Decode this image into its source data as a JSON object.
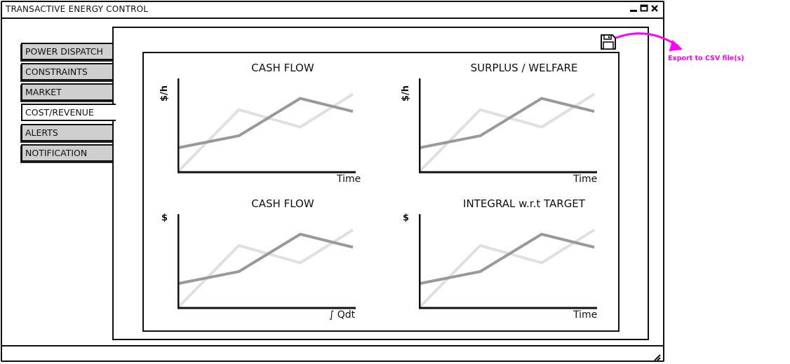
{
  "window": {
    "title": "TRANSACTIVE ENERGY CONTROL"
  },
  "tabs": [
    {
      "label": "POWER DISPATCH",
      "active": false
    },
    {
      "label": "CONSTRAINTS",
      "active": false
    },
    {
      "label": "MARKET",
      "active": false
    },
    {
      "label": "COST/REVENUE",
      "active": true
    },
    {
      "label": "ALERTS",
      "active": false
    },
    {
      "label": "NOTIFICATION",
      "active": false
    }
  ],
  "toolbar": {
    "save_icon": "floppy-disk-icon"
  },
  "annotation": {
    "export_label": "Export to CSV file(s)",
    "color": "#ff00ff"
  },
  "charts": [
    {
      "title": "CASH FLOW",
      "ylabel": "$/h",
      "xlabel": "Time"
    },
    {
      "title": "SURPLUS / WELFARE",
      "ylabel": "$/h",
      "xlabel": "Time"
    },
    {
      "title": "CASH FLOW",
      "ylabel": "$",
      "xlabel": "∫ Qdt"
    },
    {
      "title": "INTEGRAL w.r.t TARGET",
      "ylabel": "$",
      "xlabel": "Time"
    }
  ],
  "chart_data": [
    {
      "type": "line",
      "title": "CASH FLOW",
      "xlabel": "Time",
      "ylabel": "$/h",
      "series": [
        {
          "color": "#999999",
          "values": [
            {
              "x": 0,
              "y": 0.28
            },
            {
              "x": 0.35,
              "y": 0.42
            },
            {
              "x": 0.7,
              "y": 0.85
            },
            {
              "x": 1,
              "y": 0.7
            }
          ]
        },
        {
          "color": "#e0e0e0",
          "values": [
            {
              "x": 0,
              "y": 0.0
            },
            {
              "x": 0.35,
              "y": 0.72
            },
            {
              "x": 0.7,
              "y": 0.52
            },
            {
              "x": 1,
              "y": 0.9
            }
          ]
        }
      ]
    },
    {
      "type": "line",
      "title": "SURPLUS / WELFARE",
      "xlabel": "Time",
      "ylabel": "$/h",
      "series": [
        {
          "color": "#999999",
          "values": [
            {
              "x": 0,
              "y": 0.28
            },
            {
              "x": 0.35,
              "y": 0.42
            },
            {
              "x": 0.7,
              "y": 0.85
            },
            {
              "x": 1,
              "y": 0.7
            }
          ]
        },
        {
          "color": "#e0e0e0",
          "values": [
            {
              "x": 0,
              "y": 0.0
            },
            {
              "x": 0.35,
              "y": 0.72
            },
            {
              "x": 0.7,
              "y": 0.52
            },
            {
              "x": 1,
              "y": 0.9
            }
          ]
        }
      ]
    },
    {
      "type": "line",
      "title": "CASH FLOW",
      "xlabel": "∫ Qdt",
      "ylabel": "$",
      "series": [
        {
          "color": "#999999",
          "values": [
            {
              "x": 0,
              "y": 0.28
            },
            {
              "x": 0.35,
              "y": 0.42
            },
            {
              "x": 0.7,
              "y": 0.85
            },
            {
              "x": 1,
              "y": 0.7
            }
          ]
        },
        {
          "color": "#e0e0e0",
          "values": [
            {
              "x": 0,
              "y": 0.0
            },
            {
              "x": 0.35,
              "y": 0.72
            },
            {
              "x": 0.7,
              "y": 0.52
            },
            {
              "x": 1,
              "y": 0.9
            }
          ]
        }
      ]
    },
    {
      "type": "line",
      "title": "INTEGRAL w.r.t TARGET",
      "xlabel": "Time",
      "ylabel": "$",
      "series": [
        {
          "color": "#999999",
          "values": [
            {
              "x": 0,
              "y": 0.28
            },
            {
              "x": 0.35,
              "y": 0.42
            },
            {
              "x": 0.7,
              "y": 0.85
            },
            {
              "x": 1,
              "y": 0.7
            }
          ]
        },
        {
          "color": "#e0e0e0",
          "values": [
            {
              "x": 0,
              "y": 0.0
            },
            {
              "x": 0.35,
              "y": 0.72
            },
            {
              "x": 0.7,
              "y": 0.52
            },
            {
              "x": 1,
              "y": 0.9
            }
          ]
        }
      ]
    }
  ]
}
